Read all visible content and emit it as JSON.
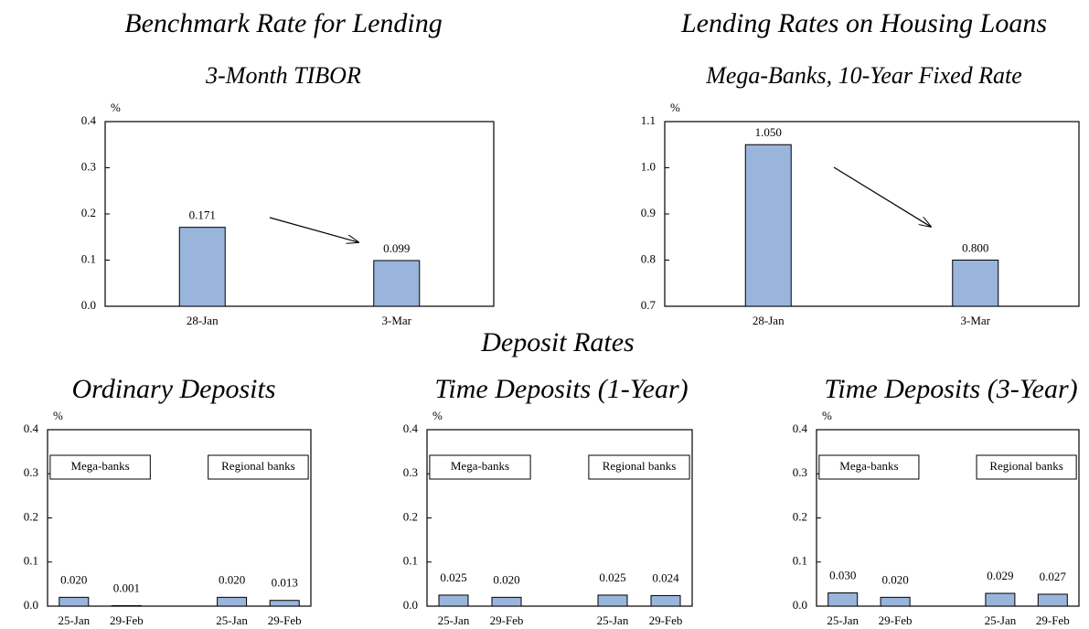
{
  "heading": "Deposit Rates",
  "chart_data": [
    {
      "type": "bar",
      "title": "Benchmark Rate for Lending",
      "subtitle": "3-Month TIBOR",
      "y_label": "%",
      "categories": [
        "28-Jan",
        "3-Mar"
      ],
      "values": [
        0.171,
        0.099
      ],
      "color": "#9ab5dc",
      "ylim": [
        0,
        0.4
      ],
      "yticks": [
        {
          "value": 0,
          "label": "0.0"
        },
        0.1,
        0.2,
        0.3,
        0.4
      ]
    },
    {
      "type": "bar",
      "title": "Lending Rates on Housing Loans",
      "subtitle": "Mega-Banks, 10-Year Fixed Rate",
      "y_label": "%",
      "categories": [
        "28-Jan",
        "3-Mar"
      ],
      "values": [
        1.05,
        0.8
      ],
      "value_labels": [
        "1.050",
        "0.800"
      ],
      "color": "#9ab5dc",
      "ylim": [
        0.7,
        1.1
      ],
      "yticks": [
        0.7,
        0.8,
        0.9,
        {
          "value": 1,
          "label": "1.0"
        },
        1.1
      ]
    },
    {
      "type": "bar",
      "title": "Ordinary Deposits",
      "y_label": "%",
      "annotations": [
        "Mega-banks",
        "Regional banks"
      ],
      "categories": [
        "25-Jan",
        "29-Feb",
        "25-Jan",
        "29-Feb"
      ],
      "values": [
        0.02,
        0.001,
        0.02,
        0.013
      ],
      "value_labels": [
        "0.020",
        "0.001",
        "0.020",
        "0.013"
      ],
      "color": "#9ab5dc",
      "ylim": [
        0,
        0.4
      ],
      "yticks": [
        {
          "value": 0,
          "label": "0.0"
        },
        0.1,
        0.2,
        0.3,
        0.4
      ]
    },
    {
      "type": "bar",
      "title": "Time Deposits (1-Year)",
      "y_label": "%",
      "annotations": [
        "Mega-banks",
        "Regional banks"
      ],
      "categories": [
        "25-Jan",
        "29-Feb",
        "25-Jan",
        "29-Feb"
      ],
      "values": [
        0.025,
        0.02,
        0.025,
        0.024
      ],
      "value_labels": [
        "0.025",
        "0.020",
        "0.025",
        "0.024"
      ],
      "color": "#9ab5dc",
      "ylim": [
        0,
        0.4
      ],
      "yticks": [
        {
          "value": 0,
          "label": "0.0"
        },
        0.1,
        0.2,
        0.3,
        0.4
      ]
    },
    {
      "type": "bar",
      "title": "Time Deposits (3-Year)",
      "y_label": "%",
      "annotations": [
        "Mega-banks",
        "Regional banks"
      ],
      "categories": [
        "25-Jan",
        "29-Feb",
        "25-Jan",
        "29-Feb"
      ],
      "values": [
        0.03,
        0.02,
        0.029,
        0.027
      ],
      "value_labels": [
        "0.030",
        "0.020",
        "0.029",
        "0.027"
      ],
      "color": "#9ab5dc",
      "ylim": [
        0,
        0.4
      ],
      "yticks": [
        {
          "value": 0,
          "label": "0.0"
        },
        0.1,
        0.2,
        0.3,
        0.4
      ]
    }
  ]
}
